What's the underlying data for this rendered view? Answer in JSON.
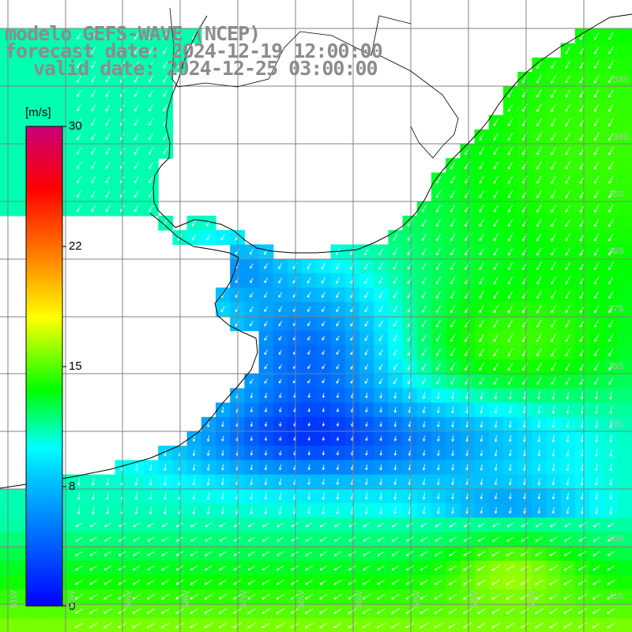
{
  "header": {
    "line1": "modelo GEFS-WAVE (NCEP)",
    "line2": "forecast date: 2024-12-19 12:00:00",
    "line3": "valid date: 2024-12-25 03:00:00"
  },
  "colorbar": {
    "unit": "[m/s]",
    "ticks": [
      "30",
      "22",
      "15",
      "8",
      "0"
    ],
    "tick_values": [
      30,
      22,
      15,
      8,
      0
    ],
    "colors": [
      "#0000ff",
      "#00c8ff",
      "#00ffff",
      "#00ff00",
      "#ffff00",
      "#ff8000",
      "#ff0000",
      "#c80078"
    ]
  },
  "map": {
    "lat_labels": [
      "33S",
      "34S",
      "35S",
      "36S",
      "37S",
      "38S",
      "39S",
      "40S",
      "41S"
    ],
    "lon_labels": [
      "61W",
      "60W",
      "59W",
      "58W",
      "57W",
      "56W",
      "55W",
      "54W",
      "53W",
      "52W"
    ],
    "land_color": "#ffffff",
    "grid_color": "#808080",
    "coast_color": "#000000",
    "arrow_color": "#ffffff"
  }
}
